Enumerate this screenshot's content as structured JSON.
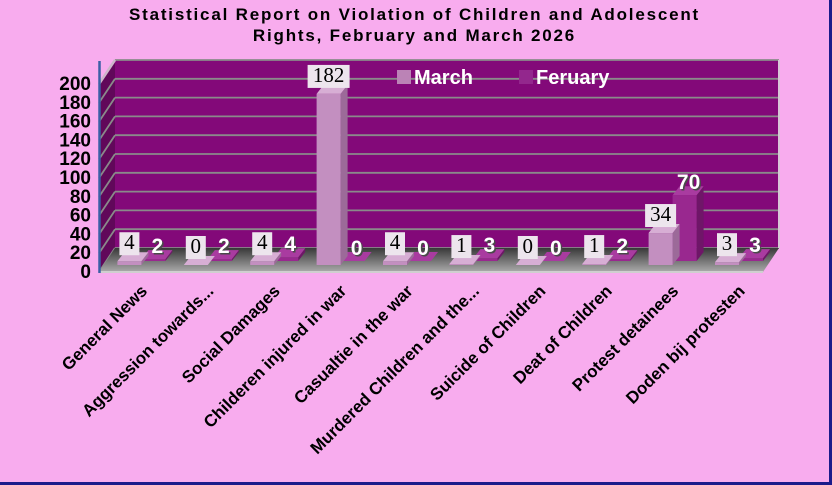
{
  "frame": {
    "background": "#f8acee",
    "border_color": "#1b1b8a"
  },
  "title": {
    "line1": "Statistical Report on Violation of Children and Adolescent",
    "line2": "Rights, February and March 2026"
  },
  "chart_data": {
    "type": "bar",
    "style": "3d-clustered-column",
    "title": "Statistical Report on Violation of Children and Adolescent Rights, February and March 2026",
    "categories": [
      "General News",
      "Aggression towards...",
      "Social Damages",
      "Childeren injured in war",
      "Casualtie in the war",
      "Murdered Children and the...",
      "Suicide of Children",
      "Deat of Children",
      "Protest detainees",
      "Doden bij protesten"
    ],
    "series": [
      {
        "name": "March",
        "values": [
          4,
          0,
          4,
          182,
          4,
          1,
          0,
          1,
          34,
          3
        ],
        "color_front": "#c38fc0",
        "color_top": "#d7aed4",
        "color_side": "#9c6a99",
        "swatch": "#bb83b6",
        "label_style": "black-on-box"
      },
      {
        "name": "Feruary",
        "values": [
          2,
          2,
          4,
          0,
          0,
          3,
          0,
          2,
          70,
          3
        ],
        "color_front": "#99288f",
        "color_top": "#a93ba0",
        "color_side": "#6f1668",
        "swatch": "#93278d",
        "label_style": "white"
      }
    ],
    "ylim": [
      0,
      200
    ],
    "ytick_step": 20,
    "ytick_labels": [
      "0",
      "20",
      "40",
      "60",
      "80",
      "100",
      "120",
      "140",
      "160",
      "180",
      "200"
    ],
    "grid": true,
    "legend": {
      "position": "top-center",
      "text_color": "#ffffff"
    },
    "colors": {
      "back_wall": "#830979",
      "side_wall": "#61085a",
      "gridline": "#8a8a8a",
      "floor_back": "#383838",
      "floor_front": "#ababab",
      "floor_edge": "#cfcfcf",
      "axis_line": "#3b5fa5",
      "wall_bevel": "#cdb6cb",
      "label_box": "#ede5ed",
      "tick_text": "#000000",
      "category_text": "#000000"
    }
  }
}
